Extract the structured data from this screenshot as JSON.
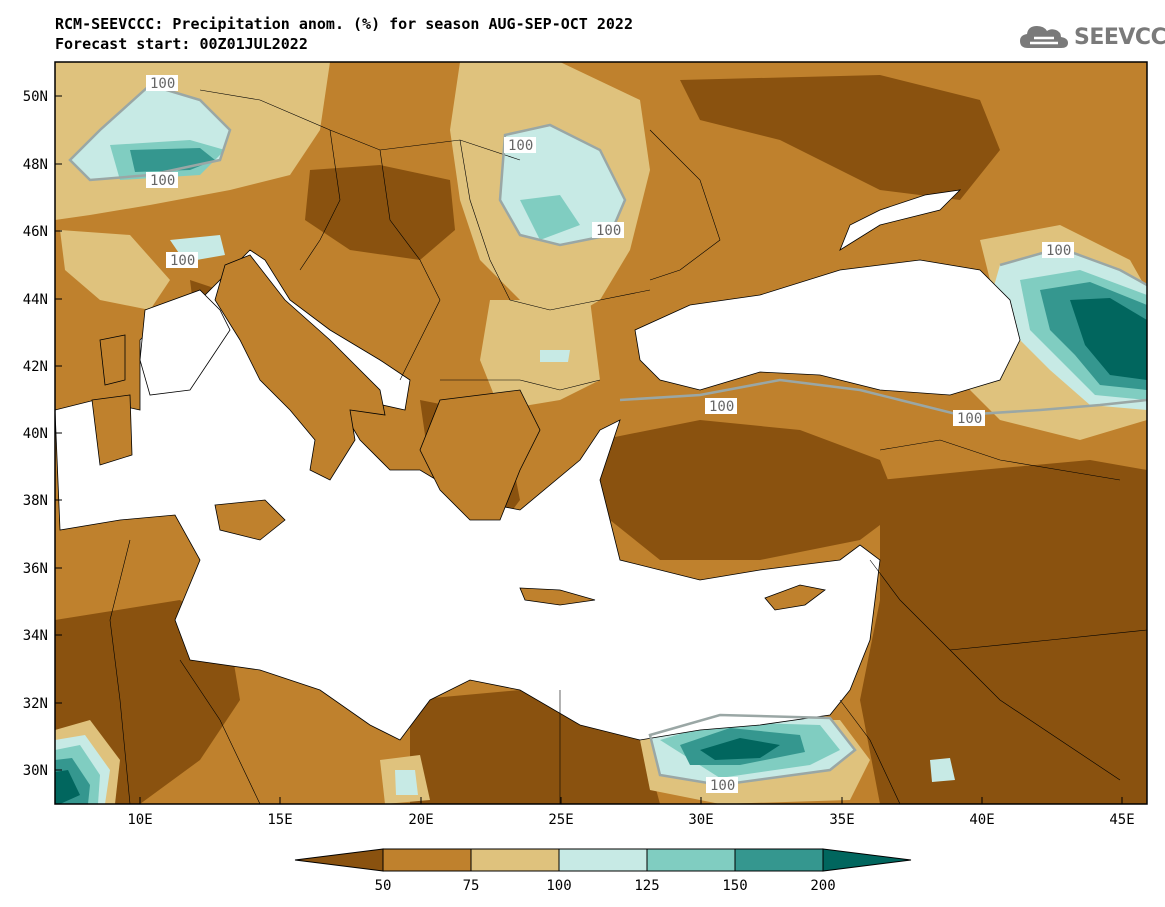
{
  "header": {
    "title": "RCM-SEEVCCC: Precipitation anom. (%) for season AUG-SEP-OCT 2022",
    "subtitle": "Forecast start: 00Z01JUL2022"
  },
  "logo": {
    "text": "SEEVCCC",
    "icon": "cloud-icon"
  },
  "map": {
    "lon_labels": [
      "10E",
      "15E",
      "20E",
      "25E",
      "30E",
      "35E",
      "40E",
      "45E"
    ],
    "lat_labels": [
      "50N",
      "48N",
      "46N",
      "44N",
      "42N",
      "40N",
      "38N",
      "36N",
      "34N",
      "32N",
      "30N"
    ],
    "contour_labels": [
      "100",
      "100",
      "100",
      "100",
      "100",
      "100",
      "100",
      "100",
      "100"
    ]
  },
  "colorbar": {
    "ticks": [
      "50",
      "75",
      "100",
      "125",
      "150",
      "200"
    ],
    "colors": [
      "#8a520f",
      "#bf812d",
      "#dfc27d",
      "#c7eae5",
      "#80cdc1",
      "#35978f",
      "#01665e"
    ]
  }
}
